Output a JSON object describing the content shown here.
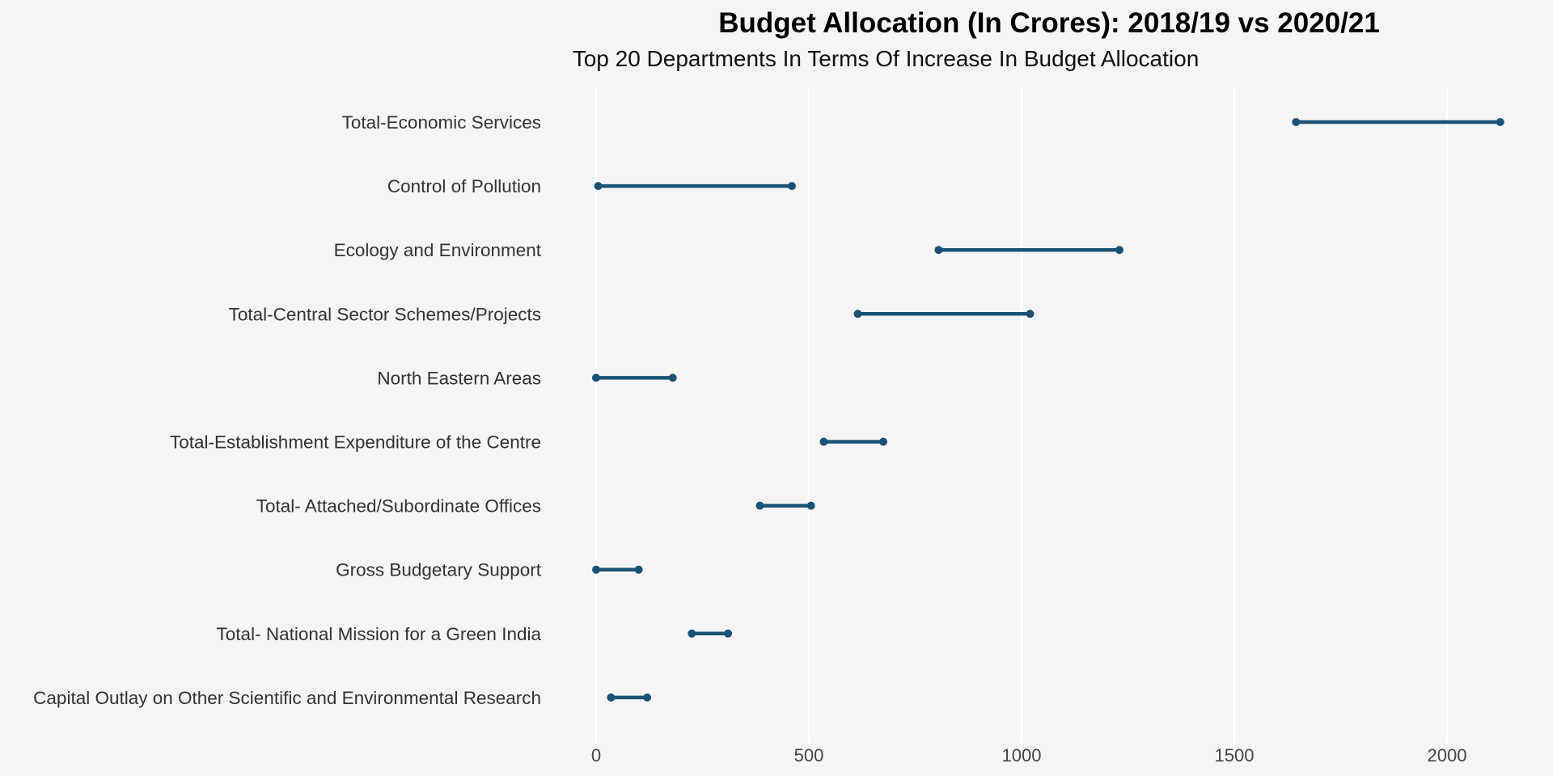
{
  "chart_data": {
    "type": "dumbbell",
    "title": "Budget Allocation (In Crores): 2018/19 vs 2020/21",
    "subtitle": "Top 20 Departments In Terms Of Increase In Budget Allocation",
    "xlabel": "",
    "ylabel": "",
    "xlim": [
      0,
      2200
    ],
    "x_ticks": [
      0,
      500,
      1000,
      1500,
      2000
    ],
    "grid": "vertical-major",
    "legend": "none",
    "colors": {
      "background": "#f5f5f5",
      "grid": "#ffffff",
      "series": "#1a5276"
    },
    "series": [
      {
        "name": "",
        "field": "start"
      },
      {
        "name": "",
        "field": "end"
      }
    ],
    "categories": [
      "Total-Economic Services",
      "Control of Pollution",
      "Ecology and Environment",
      "Total-Central Sector Schemes/Projects",
      "North Eastern Areas",
      "Total-Establishment Expenditure of the Centre",
      "Total- Attached/Subordinate Offices",
      "Gross Budgetary Support",
      "Total- National Mission for a Green India",
      "Capital Outlay on Other Scientific and Environmental Research"
    ],
    "start": [
      1645,
      5,
      805,
      615,
      0,
      535,
      385,
      0,
      225,
      35
    ],
    "end": [
      2125,
      460,
      1230,
      1020,
      180,
      675,
      505,
      100,
      310,
      120
    ]
  }
}
